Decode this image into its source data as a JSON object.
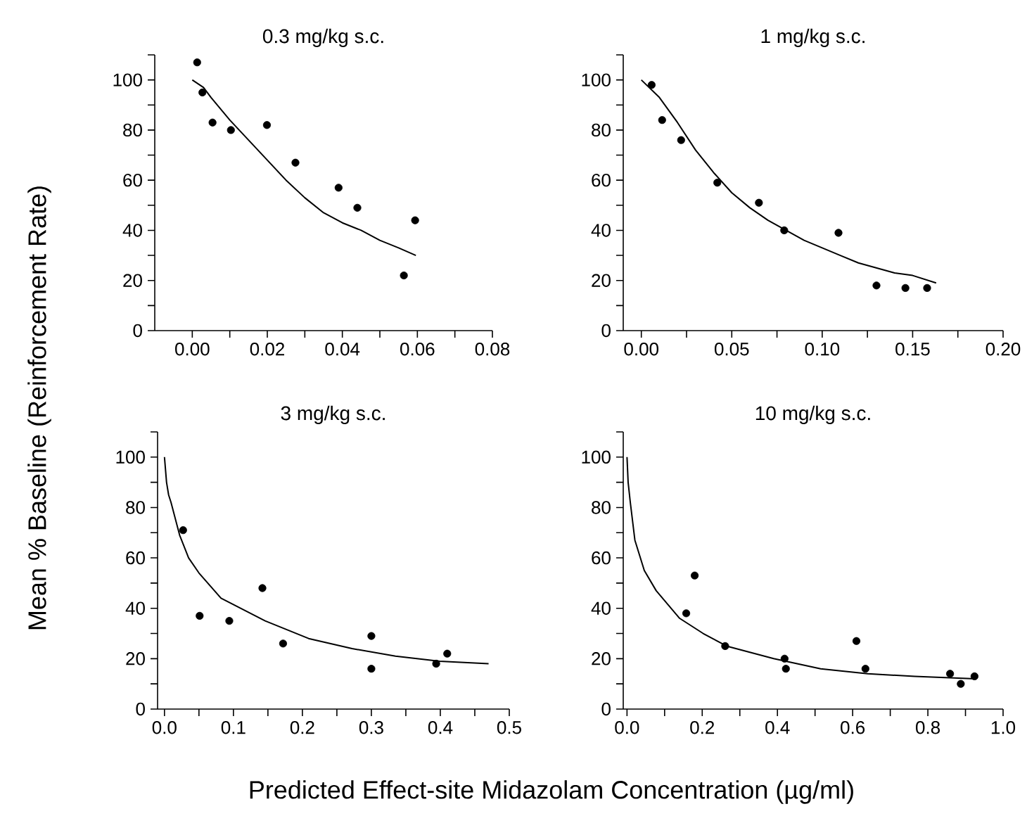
{
  "chart_data": [
    {
      "type": "scatter",
      "title": "0.3 mg/kg s.c.",
      "xlim": [
        -0.01,
        0.08
      ],
      "ylim": [
        0,
        110
      ],
      "xticks": [
        {
          "value": 0,
          "label": "0.00"
        },
        {
          "value": 0.01,
          "label": null
        },
        {
          "value": 0.02,
          "label": "0.02"
        },
        {
          "value": 0.03,
          "label": null
        },
        {
          "value": 0.04,
          "label": "0.04"
        },
        {
          "value": 0.05,
          "label": null
        },
        {
          "value": 0.06,
          "label": "0.06"
        },
        {
          "value": 0.07,
          "label": null
        },
        {
          "value": 0.08,
          "label": "0.08"
        }
      ],
      "yticks": [
        0,
        {
          "value": 10,
          "label": null
        },
        20,
        {
          "value": 30,
          "label": null
        },
        40,
        {
          "value": 50,
          "label": null
        },
        60,
        {
          "value": 70,
          "label": null
        },
        80,
        {
          "value": 90,
          "label": null
        },
        100,
        {
          "value": 110,
          "label": null
        }
      ],
      "series": [
        {
          "marker": "circle",
          "color": "#000000",
          "x": [
            0.0013,
            0.0027,
            0.0054,
            0.0103,
            0.0199,
            0.0275,
            0.039,
            0.044,
            0.0564,
            0.0594
          ],
          "values": [
            107,
            95,
            83,
            80,
            82,
            67,
            57,
            49,
            22,
            44
          ]
        },
        {
          "type": "line",
          "marker": "none",
          "color": "#000000",
          "x": [
            0,
            0.003,
            0.005,
            0.01,
            0.015,
            0.02,
            0.025,
            0.03,
            0.035,
            0.04,
            0.045,
            0.05,
            0.055,
            0.0596
          ],
          "values": [
            100,
            97,
            93,
            84,
            76,
            68,
            60,
            53,
            47,
            43,
            40,
            36,
            33,
            30
          ]
        }
      ]
    },
    {
      "type": "scatter",
      "title": "1 mg/kg s.c.",
      "xlim": [
        -0.01,
        0.2
      ],
      "ylim": [
        0,
        110
      ],
      "xticks": [
        {
          "value": 0,
          "label": "0.00"
        },
        {
          "value": 0.025,
          "label": null
        },
        {
          "value": 0.05,
          "label": "0.05"
        },
        {
          "value": 0.075,
          "label": null
        },
        {
          "value": 0.1,
          "label": "0.10"
        },
        {
          "value": 0.125,
          "label": null
        },
        {
          "value": 0.15,
          "label": "0.15"
        },
        {
          "value": 0.175,
          "label": null
        },
        {
          "value": 0.2,
          "label": "0.20"
        }
      ],
      "yticks": [
        0,
        {
          "value": 10,
          "label": null
        },
        20,
        {
          "value": 30,
          "label": null
        },
        40,
        {
          "value": 50,
          "label": null
        },
        60,
        {
          "value": 70,
          "label": null
        },
        80,
        {
          "value": 90,
          "label": null
        },
        100,
        {
          "value": 110,
          "label": null
        }
      ],
      "series": [
        {
          "marker": "circle",
          "color": "#000000",
          "x": [
            0.0057,
            0.0115,
            0.022,
            0.042,
            0.065,
            0.079,
            0.109,
            0.13,
            0.146,
            0.158
          ],
          "values": [
            98,
            84,
            76,
            59,
            51,
            40,
            39,
            18,
            17,
            17
          ]
        },
        {
          "type": "line",
          "marker": "none",
          "color": "#000000",
          "x": [
            0,
            0.01,
            0.02,
            0.03,
            0.04,
            0.05,
            0.06,
            0.07,
            0.08,
            0.09,
            0.1,
            0.11,
            0.12,
            0.13,
            0.14,
            0.15,
            0.163
          ],
          "values": [
            100,
            93,
            83,
            72,
            63,
            55,
            49,
            44,
            40,
            36,
            33,
            30,
            27,
            25,
            23,
            22,
            19
          ]
        }
      ]
    },
    {
      "type": "scatter",
      "title": "3 mg/kg s.c.",
      "ylabel": "Mean % Baseline (Reinforcement Rate)",
      "xlabel": "Predicted Effect-site Midazolam Concentration (µg/ml)",
      "xlim": [
        -0.01,
        0.5
      ],
      "ylim": [
        0,
        110
      ],
      "xticks": [
        {
          "value": 0,
          "label": "0.0"
        },
        {
          "value": 0.05,
          "label": null
        },
        {
          "value": 0.1,
          "label": "0.1"
        },
        {
          "value": 0.15,
          "label": null
        },
        {
          "value": 0.2,
          "label": "0.2"
        },
        {
          "value": 0.25,
          "label": null
        },
        {
          "value": 0.3,
          "label": "0.3"
        },
        {
          "value": 0.35,
          "label": null
        },
        {
          "value": 0.4,
          "label": "0.4"
        },
        {
          "value": 0.45,
          "label": null
        },
        {
          "value": 0.5,
          "label": "0.5"
        }
      ],
      "yticks": [
        0,
        {
          "value": 10,
          "label": null
        },
        20,
        {
          "value": 30,
          "label": null
        },
        40,
        {
          "value": 50,
          "label": null
        },
        60,
        {
          "value": 70,
          "label": null
        },
        80,
        {
          "value": 90,
          "label": null
        },
        100,
        {
          "value": 110,
          "label": null
        }
      ],
      "series": [
        {
          "marker": "circle",
          "color": "#000000",
          "x": [
            0.027,
            0.051,
            0.094,
            0.142,
            0.172,
            0.3,
            0.3,
            0.394,
            0.41
          ],
          "values": [
            71,
            37,
            35,
            48,
            26,
            29,
            16,
            18,
            22
          ]
        },
        {
          "type": "line",
          "marker": "none",
          "color": "#000000",
          "x": [
            0,
            0.003,
            0.006,
            0.0095,
            0.022,
            0.035,
            0.05,
            0.082,
            0.146,
            0.209,
            0.272,
            0.335,
            0.399,
            0.47
          ],
          "values": [
            100,
            90,
            85,
            82,
            69,
            60,
            54,
            44,
            35,
            28,
            24,
            21,
            19,
            18
          ]
        }
      ]
    },
    {
      "type": "scatter",
      "title": "10 mg/kg s.c.",
      "xlim": [
        -0.01,
        1.0
      ],
      "ylim": [
        0,
        110
      ],
      "xticks": [
        {
          "value": 0,
          "label": "0.0"
        },
        {
          "value": 0.1,
          "label": null
        },
        {
          "value": 0.2,
          "label": "0.2"
        },
        {
          "value": 0.3,
          "label": null
        },
        {
          "value": 0.4,
          "label": "0.4"
        },
        {
          "value": 0.5,
          "label": null
        },
        {
          "value": 0.6,
          "label": "0.6"
        },
        {
          "value": 0.7,
          "label": null
        },
        {
          "value": 0.8,
          "label": "0.8"
        },
        {
          "value": 0.9,
          "label": null
        },
        {
          "value": 1.0,
          "label": "1.0"
        }
      ],
      "yticks": [
        0,
        {
          "value": 10,
          "label": null
        },
        20,
        {
          "value": 30,
          "label": null
        },
        40,
        {
          "value": 50,
          "label": null
        },
        60,
        {
          "value": 70,
          "label": null
        },
        80,
        {
          "value": 90,
          "label": null
        },
        100,
        {
          "value": 110,
          "label": null
        }
      ],
      "series": [
        {
          "marker": "circle",
          "color": "#000000",
          "x": [
            0.1575,
            0.18,
            0.261,
            0.419,
            0.4225,
            0.61,
            0.634,
            0.859,
            0.8875,
            0.924
          ],
          "values": [
            38,
            53,
            25,
            20,
            16,
            27,
            16,
            14,
            10,
            13
          ]
        },
        {
          "type": "line",
          "marker": "none",
          "color": "#000000",
          "x": [
            0,
            0.003,
            0.0088,
            0.021,
            0.046,
            0.0775,
            0.14,
            0.2025,
            0.265,
            0.39,
            0.515,
            0.64,
            0.765,
            0.9275
          ],
          "values": [
            100,
            90,
            82,
            67,
            55,
            47,
            36,
            30,
            25,
            20,
            16,
            14,
            13,
            12
          ]
        }
      ]
    }
  ]
}
